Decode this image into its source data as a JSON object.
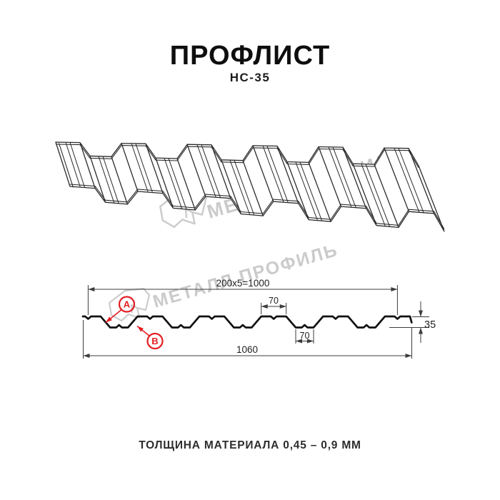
{
  "title": "ПРОФЛИСТ",
  "subtitle": "НС-35",
  "footer": {
    "thickness_note": "ТОЛЩИНА МАТЕРИАЛА 0,45 – 0,9 ММ"
  },
  "watermark": {
    "text": "МЕТАЛЛ ПРОФИЛЬ",
    "color": "#cbcbcb"
  },
  "diagram": {
    "dimensions": {
      "top_width": "200x5=1000",
      "crest_width": "70",
      "valley_width": "70",
      "overall_width": "1060",
      "height": "35"
    },
    "labels": {
      "point_a": "А",
      "point_b": "В"
    },
    "accent_color": "#e31e24",
    "line_color": "#1a1a1a"
  }
}
